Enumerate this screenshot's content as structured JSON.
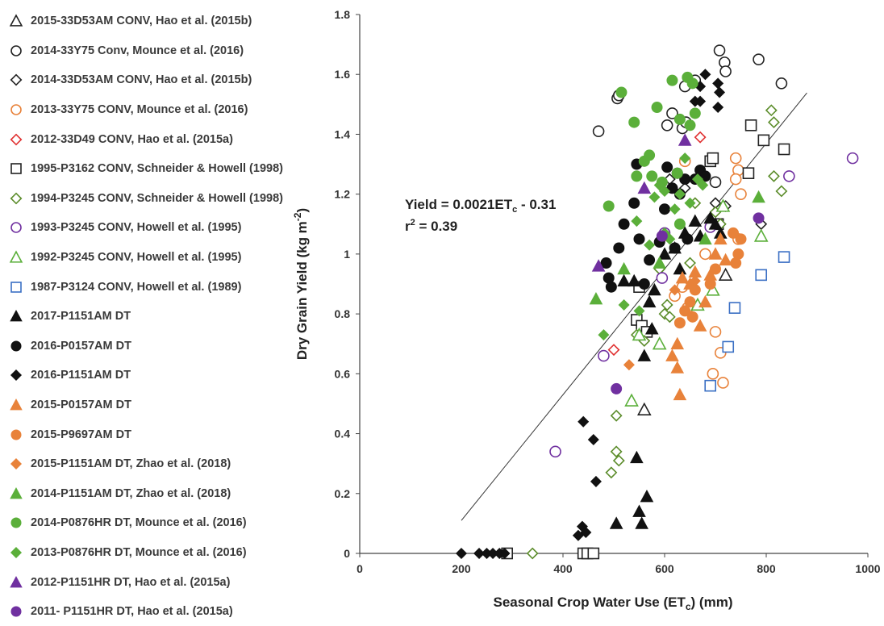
{
  "chart_data": {
    "type": "scatter",
    "xlabel": "Seasonal Crop Water Use (ET",
    "xlabel_sub": "c",
    "xlabel_tail": ") (mm)",
    "ylabel": "Dry Grain Yield (kg m",
    "ylabel_sup": "-2",
    "ylabel_tail": ")",
    "xlim": [
      0,
      1000
    ],
    "ylim": [
      0,
      1.8
    ],
    "xticks": [
      0,
      200,
      400,
      600,
      800,
      1000
    ],
    "yticks": [
      0,
      0.2,
      0.4,
      0.6,
      0.8,
      1,
      1.2,
      1.4,
      1.6,
      1.8
    ],
    "ytick_labels": [
      "0",
      "0.2",
      "0.4",
      "0.6",
      "0.8",
      "1",
      "1.2",
      "1.4",
      "1.6",
      "1.8"
    ],
    "grid": false,
    "legend_position": "left",
    "annotation": {
      "eq_prefix": "Yield = 0.0021ET",
      "eq_sub": "c",
      "eq_suffix": " - 0.31",
      "r2_prefix": "r",
      "r2_sup": "2",
      "r2_suffix": " = 0.39",
      "x": 200,
      "y": 1.2
    },
    "trendline": {
      "slope": 0.0021,
      "intercept": -0.31,
      "x_start": 200,
      "x_end": 880
    },
    "series": [
      {
        "name": "2015-33D53AM CONV, Hao et al. (2015b)",
        "marker": "triangle",
        "filled": false,
        "color": "#222222",
        "points": [
          [
            560,
            0.48
          ],
          [
            720,
            0.93
          ]
        ]
      },
      {
        "name": "2014-33Y75 Conv, Mounce et al. (2016)",
        "marker": "circle",
        "filled": false,
        "color": "#222222",
        "points": [
          [
            470,
            1.41
          ],
          [
            507,
            1.52
          ],
          [
            510,
            1.53
          ],
          [
            605,
            1.43
          ],
          [
            615,
            1.47
          ],
          [
            635,
            1.42
          ],
          [
            642,
            1.44
          ],
          [
            700,
            1.24
          ],
          [
            708,
            1.68
          ],
          [
            718,
            1.64
          ],
          [
            720,
            1.61
          ],
          [
            785,
            1.65
          ],
          [
            830,
            1.57
          ],
          [
            640,
            1.56
          ],
          [
            660,
            1.58
          ]
        ]
      },
      {
        "name": "2014-33D53AM CONV, Hao et al. (2015b)",
        "marker": "diamond",
        "filled": false,
        "color": "#222222",
        "points": [
          [
            640,
            1.22
          ],
          [
            700,
            1.17
          ],
          [
            790,
            1.1
          ],
          [
            720,
            1.16
          ],
          [
            610,
            1.25
          ]
        ]
      },
      {
        "name": "2013-33Y75 CONV, Mounce et al. (2016)",
        "marker": "circle",
        "filled": false,
        "color": "#E8823A",
        "points": [
          [
            640,
            1.31
          ],
          [
            680,
            1.0
          ],
          [
            700,
            0.74
          ],
          [
            710,
            0.67
          ],
          [
            695,
            0.6
          ],
          [
            715,
            0.57
          ],
          [
            740,
            1.32
          ],
          [
            745,
            1.28
          ],
          [
            740,
            1.25
          ],
          [
            750,
            1.2
          ],
          [
            745,
            1.05
          ],
          [
            620,
            0.86
          ],
          [
            635,
            0.89
          ],
          [
            645,
            0.82
          ]
        ]
      },
      {
        "name": "2012-33D49 CONV, Hao et al. (2015a)",
        "marker": "diamond",
        "filled": false,
        "color": "#E03030",
        "points": [
          [
            670,
            1.39
          ],
          [
            500,
            0.68
          ],
          [
            600,
            1.06
          ]
        ]
      },
      {
        "name": "1995-P3162 CONV, Schneider & Howell (1998)",
        "marker": "square",
        "filled": false,
        "color": "#222222",
        "points": [
          [
            290,
            0.0
          ],
          [
            440,
            0.0
          ],
          [
            448,
            0.0
          ],
          [
            460,
            0.0
          ],
          [
            550,
            0.89
          ],
          [
            545,
            0.78
          ],
          [
            555,
            0.76
          ],
          [
            565,
            0.74
          ],
          [
            690,
            1.31
          ],
          [
            695,
            1.32
          ],
          [
            705,
            1.1
          ],
          [
            765,
            1.27
          ],
          [
            770,
            1.43
          ],
          [
            795,
            1.38
          ],
          [
            835,
            1.35
          ]
        ]
      },
      {
        "name": "1994-P3245 CONV, Schneider & Howell (1998)",
        "marker": "diamond",
        "filled": false,
        "color": "#5B8C2A",
        "points": [
          [
            340,
            0.0
          ],
          [
            505,
            0.46
          ],
          [
            510,
            0.31
          ],
          [
            505,
            0.34
          ],
          [
            495,
            0.27
          ],
          [
            590,
            0.95
          ],
          [
            600,
            0.8
          ],
          [
            605,
            0.83
          ],
          [
            610,
            0.79
          ],
          [
            650,
            0.97
          ],
          [
            700,
            1.14
          ],
          [
            710,
            1.1
          ],
          [
            810,
            1.48
          ],
          [
            815,
            1.44
          ],
          [
            815,
            1.26
          ],
          [
            830,
            1.21
          ],
          [
            660,
            1.17
          ],
          [
            560,
            0.71
          ],
          [
            545,
            0.73
          ]
        ]
      },
      {
        "name": "1993-P3245 CONV, Howell et al. (1995)",
        "marker": "circle",
        "filled": false,
        "color": "#7030A0",
        "points": [
          [
            385,
            0.34
          ],
          [
            480,
            0.66
          ],
          [
            595,
            0.92
          ],
          [
            600,
            1.07
          ],
          [
            690,
            1.09
          ],
          [
            845,
            1.26
          ],
          [
            970,
            1.32
          ]
        ]
      },
      {
        "name": "1992-P3245 CONV, Howell et al. (1995)",
        "marker": "triangle",
        "filled": false,
        "color": "#5BAF3A",
        "points": [
          [
            535,
            0.51
          ],
          [
            550,
            0.73
          ],
          [
            590,
            0.7
          ],
          [
            665,
            0.83
          ],
          [
            695,
            0.88
          ],
          [
            790,
            1.06
          ],
          [
            715,
            1.16
          ]
        ]
      },
      {
        "name": "1987-P3124 CONV, Howell et al. (1989)",
        "marker": "square",
        "filled": false,
        "color": "#3A6FC4",
        "points": [
          [
            690,
            0.56
          ],
          [
            725,
            0.69
          ],
          [
            738,
            0.82
          ],
          [
            790,
            0.93
          ],
          [
            835,
            0.99
          ]
        ]
      },
      {
        "name": "2017-P1151AM DT",
        "marker": "triangle",
        "filled": true,
        "color": "#111111",
        "points": [
          [
            505,
            0.1
          ],
          [
            545,
            0.32
          ],
          [
            550,
            0.14
          ],
          [
            555,
            0.1
          ],
          [
            565,
            0.19
          ],
          [
            560,
            0.66
          ],
          [
            575,
            0.75
          ],
          [
            570,
            0.84
          ],
          [
            580,
            0.88
          ],
          [
            520,
            0.91
          ],
          [
            600,
            1.0
          ],
          [
            620,
            1.02
          ],
          [
            640,
            1.07
          ],
          [
            660,
            1.11
          ],
          [
            670,
            1.06
          ],
          [
            690,
            1.12
          ],
          [
            700,
            1.1
          ],
          [
            710,
            1.07
          ],
          [
            540,
            0.91
          ],
          [
            630,
            0.95
          ]
        ]
      },
      {
        "name": "2016-P0157AM DT",
        "marker": "circle",
        "filled": true,
        "color": "#111111",
        "points": [
          [
            485,
            0.97
          ],
          [
            490,
            0.92
          ],
          [
            495,
            0.89
          ],
          [
            510,
            1.02
          ],
          [
            520,
            1.1
          ],
          [
            540,
            1.17
          ],
          [
            545,
            1.3
          ],
          [
            560,
            0.9
          ],
          [
            570,
            0.98
          ],
          [
            590,
            1.04
          ],
          [
            600,
            1.15
          ],
          [
            605,
            1.29
          ],
          [
            615,
            1.22
          ],
          [
            625,
            1.27
          ],
          [
            630,
            1.2
          ],
          [
            640,
            1.25
          ],
          [
            645,
            1.05
          ],
          [
            660,
            1.25
          ],
          [
            670,
            1.28
          ],
          [
            680,
            1.26
          ],
          [
            620,
            1.02
          ],
          [
            550,
            1.05
          ]
        ]
      },
      {
        "name": "2016-P1151AM DT",
        "marker": "diamond",
        "filled": true,
        "color": "#111111",
        "points": [
          [
            200,
            0.0
          ],
          [
            235,
            0.0
          ],
          [
            250,
            0.0
          ],
          [
            262,
            0.0
          ],
          [
            275,
            0.0
          ],
          [
            285,
            0.0
          ],
          [
            430,
            0.06
          ],
          [
            438,
            0.09
          ],
          [
            445,
            0.07
          ],
          [
            440,
            0.44
          ],
          [
            460,
            0.38
          ],
          [
            465,
            0.24
          ],
          [
            660,
            1.51
          ],
          [
            670,
            1.51
          ],
          [
            680,
            1.6
          ],
          [
            705,
            1.57
          ],
          [
            708,
            1.54
          ],
          [
            705,
            1.49
          ],
          [
            670,
            1.56
          ]
        ]
      },
      {
        "name": "2015-P0157AM DT",
        "marker": "triangle",
        "filled": true,
        "color": "#E8823A",
        "points": [
          [
            615,
            0.66
          ],
          [
            625,
            0.7
          ],
          [
            630,
            0.53
          ],
          [
            635,
            0.92
          ],
          [
            650,
            0.9
          ],
          [
            660,
            0.94
          ],
          [
            670,
            0.76
          ],
          [
            680,
            0.84
          ],
          [
            690,
            0.93
          ],
          [
            700,
            1.0
          ],
          [
            710,
            1.05
          ],
          [
            720,
            0.98
          ],
          [
            625,
            0.62
          ]
        ]
      },
      {
        "name": "2015-P9697AM DT",
        "marker": "circle",
        "filled": true,
        "color": "#E8823A",
        "points": [
          [
            630,
            0.77
          ],
          [
            640,
            0.81
          ],
          [
            650,
            0.84
          ],
          [
            660,
            0.88
          ],
          [
            690,
            0.9
          ],
          [
            700,
            0.95
          ],
          [
            740,
            0.97
          ],
          [
            745,
            1.0
          ],
          [
            750,
            1.05
          ],
          [
            735,
            1.07
          ],
          [
            655,
            0.79
          ]
        ]
      },
      {
        "name": "2015-P1151AM DT, Zhao et al. (2018)",
        "marker": "diamond",
        "filled": true,
        "color": "#E8823A",
        "points": [
          [
            530,
            0.63
          ],
          [
            620,
            0.88
          ],
          [
            660,
            0.91
          ]
        ]
      },
      {
        "name": "2014-P1151AM DT, Zhao et al. (2018)",
        "marker": "triangle",
        "filled": true,
        "color": "#5BAF3A",
        "points": [
          [
            465,
            0.85
          ],
          [
            520,
            0.95
          ],
          [
            590,
            0.97
          ],
          [
            680,
            1.05
          ],
          [
            785,
            1.19
          ]
        ]
      },
      {
        "name": "2014-P0876HR DT, Mounce et al. (2016)",
        "marker": "circle",
        "filled": true,
        "color": "#5BAF3A",
        "points": [
          [
            490,
            1.16
          ],
          [
            515,
            1.54
          ],
          [
            540,
            1.44
          ],
          [
            545,
            1.26
          ],
          [
            560,
            1.31
          ],
          [
            570,
            1.33
          ],
          [
            585,
            1.49
          ],
          [
            595,
            1.24
          ],
          [
            615,
            1.58
          ],
          [
            625,
            1.27
          ],
          [
            630,
            1.1
          ],
          [
            645,
            1.59
          ],
          [
            650,
            1.43
          ],
          [
            655,
            1.57
          ],
          [
            660,
            1.47
          ],
          [
            630,
            1.45
          ],
          [
            575,
            1.26
          ]
        ]
      },
      {
        "name": "2013-P0876HR DT, Mounce et al. (2016)",
        "marker": "diamond",
        "filled": true,
        "color": "#5BAF3A",
        "points": [
          [
            480,
            0.73
          ],
          [
            520,
            0.83
          ],
          [
            545,
            1.11
          ],
          [
            550,
            0.81
          ],
          [
            570,
            1.03
          ],
          [
            580,
            1.19
          ],
          [
            590,
            1.23
          ],
          [
            600,
            1.07
          ],
          [
            610,
            1.05
          ],
          [
            620,
            1.15
          ],
          [
            630,
            1.2
          ],
          [
            650,
            1.17
          ],
          [
            665,
            1.25
          ],
          [
            675,
            1.23
          ],
          [
            600,
            1.21
          ],
          [
            640,
            1.32
          ]
        ]
      },
      {
        "name": "2012-P1151HR DT, Hao et al. (2015a)",
        "marker": "triangle",
        "filled": true,
        "color": "#7030A0",
        "points": [
          [
            470,
            0.96
          ],
          [
            560,
            1.22
          ],
          [
            640,
            1.38
          ]
        ]
      },
      {
        "name": "2011- P1151HR DT, Hao et al. (2015a)",
        "marker": "circle",
        "filled": true,
        "color": "#7030A0",
        "points": [
          [
            505,
            0.55
          ],
          [
            595,
            1.06
          ],
          [
            785,
            1.12
          ]
        ]
      }
    ]
  }
}
